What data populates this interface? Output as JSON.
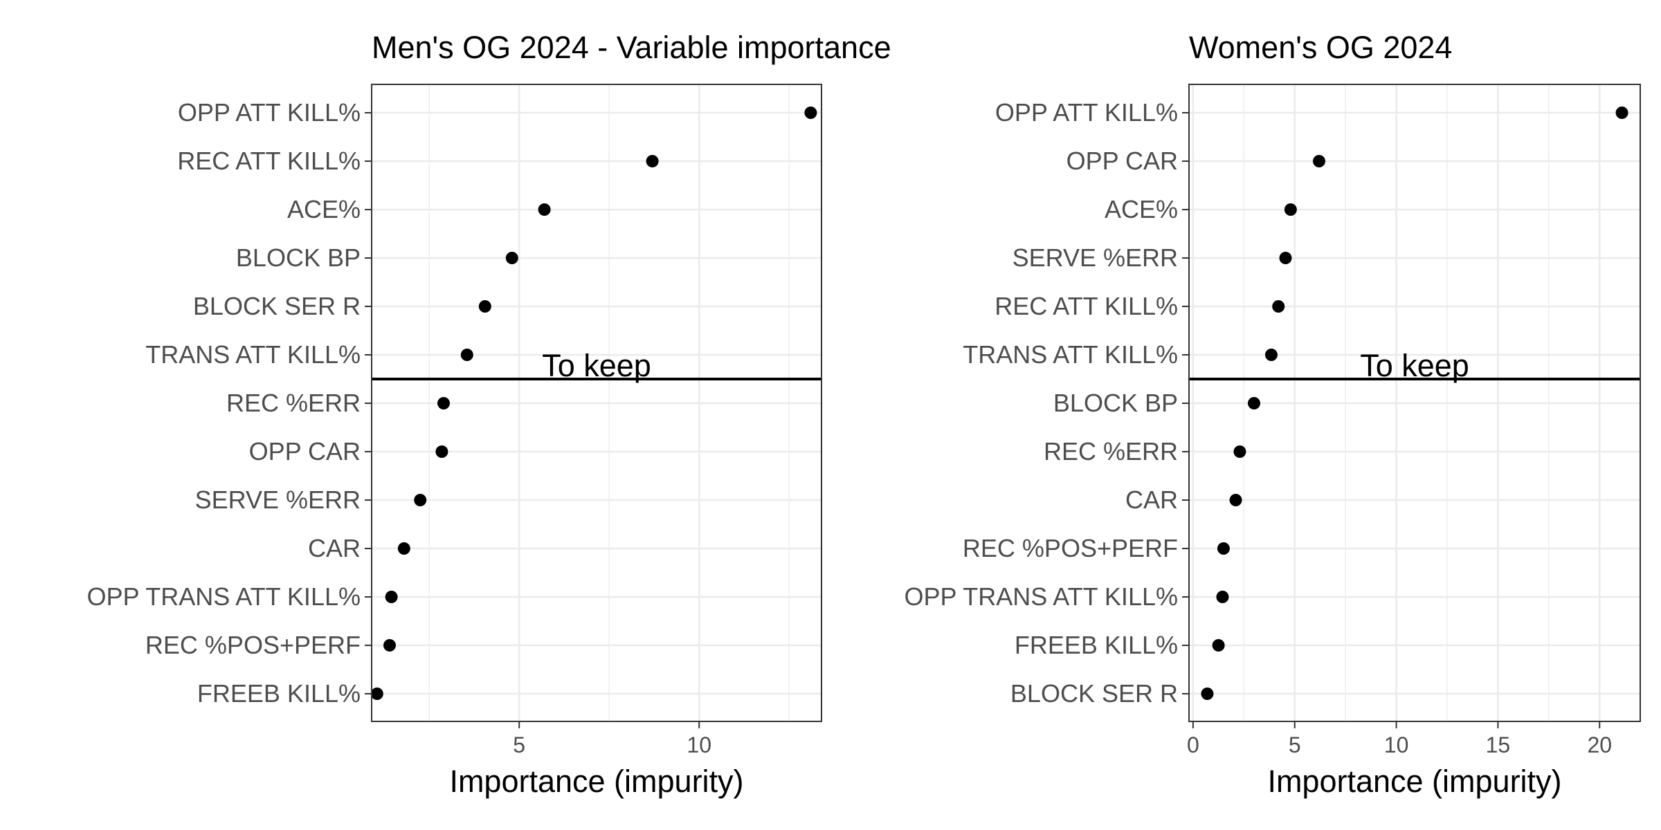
{
  "chart_data": [
    {
      "type": "scatter",
      "title": "Men's OG 2024 - Variable importance",
      "xlabel": "Importance (impurity)",
      "ylabel": "",
      "xlim": [
        0.9,
        13.4
      ],
      "xticks": [
        5,
        10
      ],
      "categories": [
        "OPP ATT KILL%",
        "REC ATT KILL%",
        "ACE%",
        "BLOCK BP",
        "BLOCK SER R",
        "TRANS ATT KILL%",
        "REC %ERR",
        "OPP CAR",
        "SERVE %ERR",
        "CAR",
        "OPP TRANS ATT KILL%",
        "REC %POS+PERF",
        "FREEB KILL%"
      ],
      "values": [
        13.1,
        8.7,
        5.7,
        4.8,
        4.05,
        3.55,
        2.9,
        2.85,
        2.25,
        1.8,
        1.45,
        1.4,
        1.05
      ],
      "annotation": "To keep",
      "cutoff_after_rank": 6,
      "grid": true
    },
    {
      "type": "scatter",
      "title": "Women's OG 2024",
      "xlabel": "Importance (impurity)",
      "ylabel": "",
      "xlim": [
        -0.2,
        22.0
      ],
      "xticks": [
        0,
        5,
        10,
        15,
        20
      ],
      "categories": [
        "OPP ATT KILL%",
        "OPP CAR",
        "ACE%",
        "SERVE %ERR",
        "REC ATT KILL%",
        "TRANS ATT KILL%",
        "BLOCK BP",
        "REC %ERR",
        "CAR",
        "REC %POS+PERF",
        "OPP TRANS ATT KILL%",
        "FREEB KILL%",
        "BLOCK SER R"
      ],
      "values": [
        21.1,
        6.2,
        4.8,
        4.55,
        4.2,
        3.85,
        3.0,
        2.3,
        2.1,
        1.5,
        1.45,
        1.25,
        0.7
      ],
      "annotation": "To keep",
      "cutoff_after_rank": 6,
      "grid": true
    }
  ]
}
